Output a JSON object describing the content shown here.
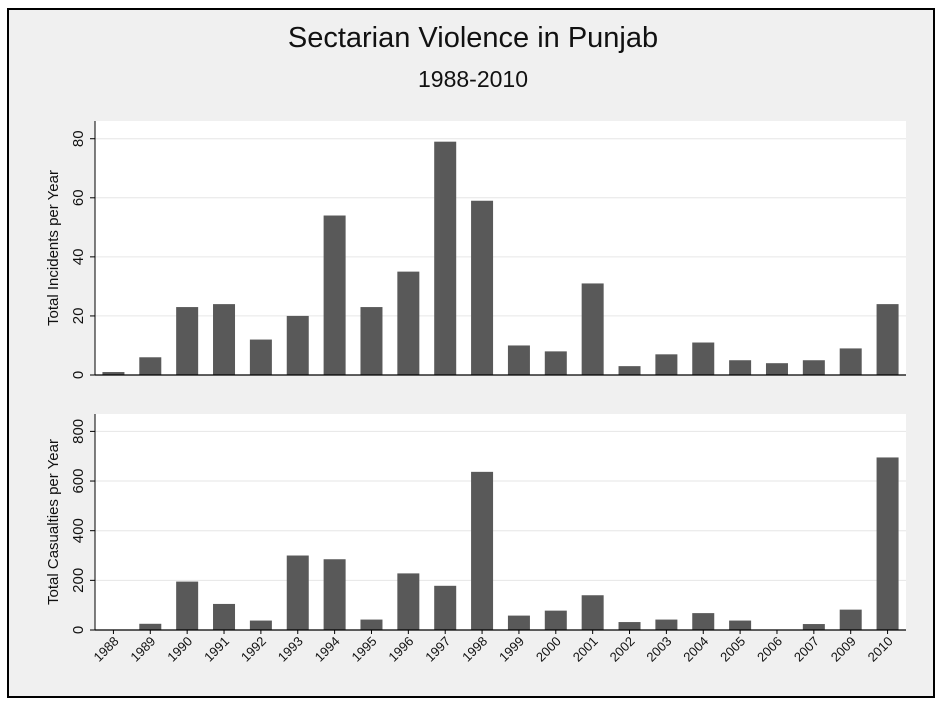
{
  "chart_data": {
    "type": "bar",
    "title": "Sectarian Violence in Punjab",
    "subtitle": "1988-2010",
    "categories": [
      "1988",
      "1989",
      "1990",
      "1991",
      "1992",
      "1993",
      "1994",
      "1995",
      "1996",
      "1997",
      "1998",
      "1999",
      "2000",
      "2001",
      "2002",
      "2003",
      "2004",
      "2005",
      "2006",
      "2007",
      "2009",
      "2010"
    ],
    "panels": [
      {
        "ylabel": "Total Incidents per Year",
        "ylim": [
          0,
          86
        ],
        "yticks": [
          0,
          20,
          40,
          60,
          80
        ],
        "values": [
          1,
          6,
          23,
          24,
          12,
          20,
          54,
          23,
          35,
          79,
          59,
          10,
          8,
          31,
          3,
          7,
          11,
          5,
          4,
          5,
          9,
          24
        ]
      },
      {
        "ylabel": "Total Casualties per Year",
        "ylim": [
          0,
          870
        ],
        "yticks": [
          0,
          200,
          400,
          600,
          800
        ],
        "values": [
          0,
          25,
          195,
          105,
          38,
          300,
          285,
          42,
          228,
          178,
          637,
          58,
          78,
          140,
          32,
          42,
          68,
          38,
          0,
          24,
          82,
          695
        ]
      }
    ],
    "grid": true,
    "legend": "none",
    "colors": {
      "bar": "#595959",
      "frame_background": "#f0f0f0",
      "plot_background": "#ffffff",
      "gridline": "#e6e6e6"
    }
  }
}
